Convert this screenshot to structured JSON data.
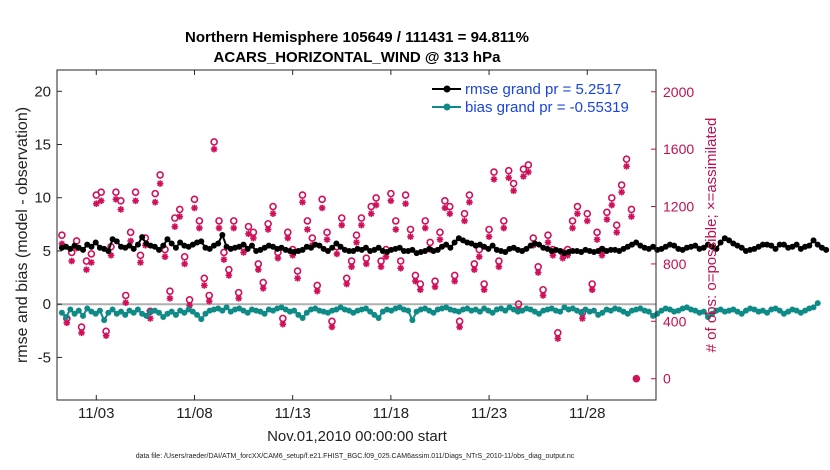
{
  "chart_data": {
    "type": "line",
    "title_line1": "Northern Hemisphere 105649 / 111431 = 94.811%",
    "title_line2": "ACARS_HORIZONTAL_WIND @ 313 hPa",
    "xlabel": "Nov.01,2010 00:00:00 start",
    "ylabel_left": "rmse and bias (model - observation)",
    "ylabel_right": "# of obs: o=possible; ×=assimilated",
    "xlim": [
      0,
      30.5
    ],
    "ylim_left": [
      -9,
      22
    ],
    "ylim_right": [
      -148.4,
      2151.6
    ],
    "left_ticks": [
      "-5",
      "0",
      "5",
      "10",
      "15",
      "20"
    ],
    "left_tick_values": [
      -5,
      0,
      5,
      10,
      15,
      20
    ],
    "right_ticks": [
      "0",
      "400",
      "800",
      "1200",
      "1600",
      "2000"
    ],
    "right_tick_values": [
      0,
      400,
      800,
      1200,
      1600,
      2000
    ],
    "x_ticks": [
      "11/03",
      "11/08",
      "11/13",
      "11/18",
      "11/23",
      "11/28"
    ],
    "x_tick_values": [
      2,
      7,
      12,
      17,
      22,
      27
    ],
    "legend": [
      {
        "name": "rmse grand pr = 5.2517",
        "color": "#000000"
      },
      {
        "name": "bias grand pr = -0.55319",
        "color": "#0e8a87"
      }
    ],
    "colors": {
      "rmse": "#000000",
      "bias": "#0e8a87",
      "obs": "#d0105a",
      "axis_right": "#c0104f",
      "legend_text": "#1a44e0",
      "zero_line": "#b0b0b0"
    },
    "x_step_days": 0.25,
    "rmse_values": [
      5.3,
      5.4,
      5.2,
      5.5,
      5.3,
      5.1,
      5.6,
      5.4,
      5.8,
      5.3,
      5.2,
      5.0,
      6.1,
      5.9,
      5.4,
      5.3,
      5.5,
      5.2,
      5.6,
      6.3,
      5.7,
      5.5,
      5.4,
      5.1,
      5.5,
      6.1,
      5.7,
      5.3,
      5.8,
      5.5,
      5.4,
      5.6,
      5.8,
      5.9,
      5.3,
      5.2,
      5.5,
      5.7,
      6.5,
      5.4,
      5.2,
      5.3,
      5.4,
      5.6,
      5.2,
      5.5,
      5.0,
      5.1,
      5.3,
      5.5,
      5.4,
      5.2,
      5.3,
      5.1,
      5.0,
      4.9,
      5.0,
      5.1,
      5.4,
      5.3,
      5.6,
      5.5,
      5.2,
      5.0,
      5.3,
      5.7,
      5.4,
      5.1,
      5.0,
      5.0,
      5.2,
      5.1,
      5.3,
      5.0,
      5.1,
      5.3,
      5.0,
      4.9,
      5.1,
      5.2,
      5.3,
      5.0,
      5.0,
      5.1,
      4.8,
      4.9,
      5.0,
      5.2,
      5.0,
      5.1,
      5.4,
      5.6,
      5.3,
      5.8,
      6.2,
      6.0,
      5.8,
      5.7,
      5.5,
      5.6,
      5.4,
      5.2,
      5.5,
      5.1,
      5.0,
      4.9,
      5.2,
      5.3,
      5.1,
      5.0,
      5.2,
      5.5,
      5.7,
      5.6,
      5.3,
      5.2,
      5.0,
      5.1,
      5.0,
      4.8,
      4.9,
      5.0,
      5.0,
      4.9,
      5.1,
      5.0,
      4.9,
      5.0,
      5.2,
      5.0,
      5.1,
      5.1,
      5.0,
      5.2,
      5.4,
      5.6,
      5.8,
      5.5,
      5.3,
      5.2,
      5.4,
      5.1,
      5.2,
      5.4,
      5.6,
      5.5,
      5.2,
      5.1,
      5.3,
      5.4,
      5.5,
      5.2,
      5.3,
      5.6,
      5.4,
      5.2,
      5.8,
      6.2,
      6.0,
      5.7,
      5.5,
      5.3,
      5.0,
      5.1,
      5.2,
      5.4,
      5.6,
      5.6,
      5.5,
      5.2,
      5.6,
      5.6,
      5.3,
      5.4,
      5.6,
      5.2,
      5.4,
      5.5,
      6.0,
      5.6,
      5.3,
      5.1
    ],
    "bias_values": [
      -0.8,
      -1.2,
      -0.5,
      -0.9,
      -0.6,
      -1.1,
      -0.4,
      -0.7,
      -0.9,
      -0.6,
      -1.5,
      -0.8,
      -0.5,
      -0.9,
      -0.7,
      -1.0,
      -0.6,
      -0.8,
      -0.5,
      -0.9,
      -1.1,
      -0.7,
      -0.6,
      -0.8,
      -1.2,
      -0.9,
      -0.7,
      -1.0,
      -0.6,
      -0.8,
      -0.5,
      -0.7,
      -1.0,
      -1.4,
      -0.9,
      -0.6,
      -0.5,
      -0.4,
      -0.6,
      -0.3,
      -0.7,
      -0.5,
      -0.4,
      -0.6,
      -0.8,
      -0.5,
      -0.6,
      -0.7,
      -0.9,
      -0.5,
      -0.6,
      -0.4,
      -0.3,
      -0.5,
      -0.7,
      -0.6,
      -1.0,
      -1.3,
      -0.8,
      -0.5,
      -0.4,
      -0.6,
      -0.7,
      -0.8,
      -0.6,
      -0.5,
      -0.3,
      -0.5,
      -0.6,
      -0.8,
      -0.6,
      -0.5,
      -0.4,
      -0.7,
      -1.0,
      -1.3,
      -0.7,
      -0.5,
      -0.6,
      -0.4,
      -0.3,
      -0.5,
      -0.6,
      -1.5,
      -0.7,
      -0.5,
      -0.4,
      -0.6,
      -0.8,
      -0.5,
      -0.4,
      -0.3,
      -0.5,
      -0.6,
      -0.7,
      -0.5,
      -0.4,
      -0.6,
      -0.5,
      -0.7,
      -0.4,
      -0.6,
      -0.8,
      -0.5,
      -0.4,
      -0.6,
      -0.3,
      -0.5,
      -0.7,
      -0.6,
      -0.4,
      -0.5,
      -0.7,
      -0.9,
      -0.6,
      -0.5,
      -0.4,
      -0.6,
      -0.7,
      -0.3,
      -0.5,
      -0.4,
      -0.6,
      -0.8,
      -0.5,
      -0.7,
      -0.6,
      -1.0,
      -0.8,
      -0.5,
      -0.6,
      -0.4,
      -0.5,
      -0.7,
      -0.9,
      -0.6,
      -0.5,
      -0.4,
      -0.6,
      -0.7,
      -1.1,
      -0.9,
      -0.6,
      -0.4,
      -0.5,
      -0.7,
      -0.6,
      -0.4,
      -0.3,
      -0.5,
      -0.6,
      -0.8,
      -0.7,
      -1.2,
      -0.9,
      -0.6,
      -0.5,
      -0.7,
      -0.6,
      -0.5,
      -0.7,
      -0.9,
      -0.6,
      -0.4,
      -0.5,
      -0.7,
      -0.6,
      -0.8,
      -0.5,
      -0.4,
      -0.6,
      -0.9,
      -0.7,
      -0.5,
      -0.6,
      -0.8,
      -0.6,
      -0.4,
      -0.3,
      0.1
    ],
    "obs_points": [
      {
        "x": 0.25,
        "possible": 1000,
        "assimilated": 940
      },
      {
        "x": 0.5,
        "possible": 420,
        "assimilated": 390
      },
      {
        "x": 0.75,
        "possible": 880,
        "assimilated": 820
      },
      {
        "x": 1.0,
        "possible": 960,
        "assimilated": 910
      },
      {
        "x": 1.25,
        "possible": 360,
        "assimilated": 320
      },
      {
        "x": 1.5,
        "possible": 820,
        "assimilated": 760
      },
      {
        "x": 1.75,
        "possible": 870,
        "assimilated": 810
      },
      {
        "x": 2.0,
        "possible": 1280,
        "assimilated": 1220
      },
      {
        "x": 2.25,
        "possible": 1300,
        "assimilated": 1240
      },
      {
        "x": 2.5,
        "possible": 330,
        "assimilated": 300
      },
      {
        "x": 2.75,
        "possible": 920,
        "assimilated": 860
      },
      {
        "x": 3.0,
        "possible": 1300,
        "assimilated": 1250
      },
      {
        "x": 3.25,
        "possible": 1240,
        "assimilated": 1180
      },
      {
        "x": 3.5,
        "possible": 580,
        "assimilated": 530
      },
      {
        "x": 3.75,
        "possible": 1020,
        "assimilated": 960
      },
      {
        "x": 4.0,
        "possible": 1300,
        "assimilated": 1240
      },
      {
        "x": 4.25,
        "possible": 860,
        "assimilated": 810
      },
      {
        "x": 4.5,
        "possible": 980,
        "assimilated": 930
      },
      {
        "x": 4.75,
        "possible": 470,
        "assimilated": 420
      },
      {
        "x": 5.0,
        "possible": 1290,
        "assimilated": 1230
      },
      {
        "x": 5.25,
        "possible": 1420,
        "assimilated": 1360
      },
      {
        "x": 5.5,
        "possible": 900,
        "assimilated": 850
      },
      {
        "x": 5.75,
        "possible": 610,
        "assimilated": 560
      },
      {
        "x": 6.0,
        "possible": 1120,
        "assimilated": 1060
      },
      {
        "x": 6.25,
        "possible": 1180,
        "assimilated": 1130
      },
      {
        "x": 6.5,
        "possible": 850,
        "assimilated": 800
      },
      {
        "x": 6.75,
        "possible": 550,
        "assimilated": 510
      },
      {
        "x": 7.0,
        "possible": 1250,
        "assimilated": 1190
      },
      {
        "x": 7.25,
        "possible": 1100,
        "assimilated": 1050
      },
      {
        "x": 7.5,
        "possible": 700,
        "assimilated": 650
      },
      {
        "x": 7.75,
        "possible": 580,
        "assimilated": 540
      },
      {
        "x": 8.0,
        "possible": 1650,
        "assimilated": 1600
      },
      {
        "x": 8.25,
        "possible": 1100,
        "assimilated": 1050
      },
      {
        "x": 8.5,
        "possible": 880,
        "assimilated": 830
      },
      {
        "x": 8.75,
        "possible": 760,
        "assimilated": 720
      },
      {
        "x": 9.0,
        "possible": 1100,
        "assimilated": 1050
      },
      {
        "x": 9.25,
        "possible": 600,
        "assimilated": 560
      },
      {
        "x": 9.5,
        "possible": 920,
        "assimilated": 880
      },
      {
        "x": 9.75,
        "possible": 1060,
        "assimilated": 1010
      },
      {
        "x": 10.0,
        "possible": 1020,
        "assimilated": 980
      },
      {
        "x": 10.25,
        "possible": 800,
        "assimilated": 760
      },
      {
        "x": 10.5,
        "possible": 670,
        "assimilated": 630
      },
      {
        "x": 10.75,
        "possible": 1080,
        "assimilated": 1040
      },
      {
        "x": 11.0,
        "possible": 1200,
        "assimilated": 1150
      },
      {
        "x": 11.25,
        "possible": 880,
        "assimilated": 840
      },
      {
        "x": 11.5,
        "possible": 420,
        "assimilated": 380
      },
      {
        "x": 11.75,
        "possible": 1020,
        "assimilated": 980
      },
      {
        "x": 12.0,
        "possible": 900,
        "assimilated": 860
      },
      {
        "x": 12.25,
        "possible": 750,
        "assimilated": 700
      },
      {
        "x": 12.5,
        "possible": 1280,
        "assimilated": 1230
      },
      {
        "x": 12.75,
        "possible": 1100,
        "assimilated": 1040
      },
      {
        "x": 13.0,
        "possible": 980,
        "assimilated": 930
      },
      {
        "x": 13.25,
        "possible": 650,
        "assimilated": 610
      },
      {
        "x": 13.5,
        "possible": 1250,
        "assimilated": 1190
      },
      {
        "x": 13.75,
        "possible": 1020,
        "assimilated": 970
      },
      {
        "x": 14.0,
        "possible": 400,
        "assimilated": 360
      },
      {
        "x": 14.25,
        "possible": 920,
        "assimilated": 870
      },
      {
        "x": 14.5,
        "possible": 1120,
        "assimilated": 1070
      },
      {
        "x": 14.75,
        "possible": 700,
        "assimilated": 660
      },
      {
        "x": 15.0,
        "possible": 820,
        "assimilated": 780
      },
      {
        "x": 15.25,
        "possible": 1000,
        "assimilated": 950
      },
      {
        "x": 15.5,
        "possible": 1120,
        "assimilated": 1070
      },
      {
        "x": 15.75,
        "possible": 840,
        "assimilated": 800
      },
      {
        "x": 16.0,
        "possible": 1200,
        "assimilated": 1150
      },
      {
        "x": 16.25,
        "possible": 1260,
        "assimilated": 1210
      },
      {
        "x": 16.5,
        "possible": 820,
        "assimilated": 780
      },
      {
        "x": 16.75,
        "possible": 900,
        "assimilated": 850
      },
      {
        "x": 17.0,
        "possible": 1290,
        "assimilated": 1240
      },
      {
        "x": 17.25,
        "possible": 1100,
        "assimilated": 1040
      },
      {
        "x": 17.5,
        "possible": 820,
        "assimilated": 770
      },
      {
        "x": 17.75,
        "possible": 1280,
        "assimilated": 1220
      },
      {
        "x": 18.0,
        "possible": 1040,
        "assimilated": 990
      },
      {
        "x": 18.25,
        "possible": 720,
        "assimilated": 680
      },
      {
        "x": 18.5,
        "possible": 660,
        "assimilated": 620
      },
      {
        "x": 18.75,
        "possible": 1100,
        "assimilated": 1050
      },
      {
        "x": 19.0,
        "possible": 950,
        "assimilated": 900
      },
      {
        "x": 19.25,
        "possible": 680,
        "assimilated": 640
      },
      {
        "x": 19.5,
        "possible": 1020,
        "assimilated": 970
      },
      {
        "x": 19.75,
        "possible": 1240,
        "assimilated": 1190
      },
      {
        "x": 20.0,
        "possible": 1200,
        "assimilated": 1150
      },
      {
        "x": 20.25,
        "possible": 720,
        "assimilated": 680
      },
      {
        "x": 20.5,
        "possible": 400,
        "assimilated": 360
      },
      {
        "x": 20.75,
        "possible": 1150,
        "assimilated": 1100
      },
      {
        "x": 21.0,
        "possible": 1280,
        "assimilated": 1230
      },
      {
        "x": 21.25,
        "possible": 800,
        "assimilated": 760
      },
      {
        "x": 21.5,
        "possible": 900,
        "assimilated": 850
      },
      {
        "x": 21.75,
        "possible": 660,
        "assimilated": 620
      },
      {
        "x": 22.0,
        "possible": 1040,
        "assimilated": 990
      },
      {
        "x": 22.25,
        "possible": 1440,
        "assimilated": 1390
      },
      {
        "x": 22.5,
        "possible": 820,
        "assimilated": 780
      },
      {
        "x": 22.75,
        "possible": 1100,
        "assimilated": 1050
      },
      {
        "x": 23.0,
        "possible": 1450,
        "assimilated": 1400
      },
      {
        "x": 23.25,
        "possible": 1360,
        "assimilated": 1310
      },
      {
        "x": 23.5,
        "possible": 520,
        "assimilated": 480
      },
      {
        "x": 23.75,
        "possible": 1460,
        "assimilated": 1410
      },
      {
        "x": 24.0,
        "possible": 1490,
        "assimilated": 1440
      },
      {
        "x": 24.25,
        "possible": 980,
        "assimilated": 930
      },
      {
        "x": 24.5,
        "possible": 780,
        "assimilated": 740
      },
      {
        "x": 24.75,
        "possible": 620,
        "assimilated": 580
      },
      {
        "x": 25.0,
        "possible": 1000,
        "assimilated": 950
      },
      {
        "x": 25.25,
        "possible": 900,
        "assimilated": 860
      },
      {
        "x": 25.5,
        "possible": 320,
        "assimilated": 280
      },
      {
        "x": 25.75,
        "possible": 880,
        "assimilated": 840
      },
      {
        "x": 26.0,
        "possible": 900,
        "assimilated": 860
      },
      {
        "x": 26.25,
        "possible": 1100,
        "assimilated": 1050
      },
      {
        "x": 26.5,
        "possible": 1200,
        "assimilated": 1150
      },
      {
        "x": 26.75,
        "possible": 460,
        "assimilated": 420
      },
      {
        "x": 27.0,
        "possible": 1150,
        "assimilated": 1100
      },
      {
        "x": 27.25,
        "possible": 660,
        "assimilated": 620
      },
      {
        "x": 27.5,
        "possible": 1020,
        "assimilated": 970
      },
      {
        "x": 27.75,
        "possible": 900,
        "assimilated": 860
      },
      {
        "x": 28.0,
        "possible": 1160,
        "assimilated": 1110
      },
      {
        "x": 28.25,
        "possible": 1260,
        "assimilated": 1210
      },
      {
        "x": 28.5,
        "possible": 1070,
        "assimilated": 1020
      },
      {
        "x": 28.75,
        "possible": 1350,
        "assimilated": 1300
      },
      {
        "x": 29.0,
        "possible": 1530,
        "assimilated": 1480
      },
      {
        "x": 29.25,
        "possible": 1180,
        "assimilated": 1130
      },
      {
        "x": 29.5,
        "possible": 0,
        "assimilated": 0
      }
    ]
  },
  "footnote": "data file: /Users/raeder/DAI/ATM_forcXX/CAM6_setup/f.e21.FHIST_BGC.f09_025.CAM6assim.011/Diags_NTrS_2010-11/obs_diag_output.nc"
}
